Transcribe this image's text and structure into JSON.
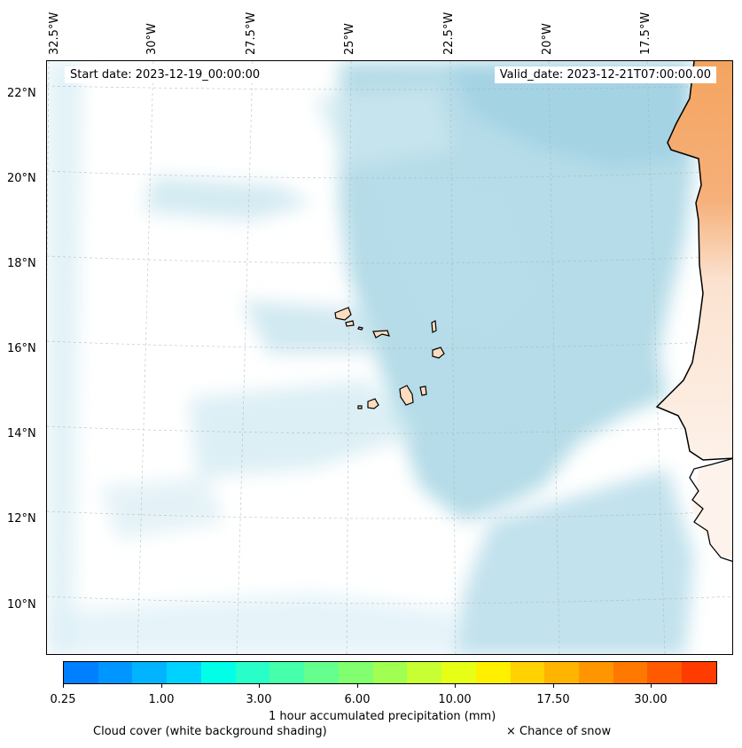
{
  "map": {
    "start_date": "Start date: 2023-12-19_00:00:00",
    "valid_date": "Valid_date: 2023-12-21T07:00:00.00",
    "lon_labels": [
      "32.5°W",
      "30°W",
      "27.5°W",
      "25°W",
      "22.5°W",
      "20°W",
      "17.5°W"
    ],
    "lat_labels": [
      "22°N",
      "20°N",
      "18°N",
      "16°N",
      "14°N",
      "12°N",
      "10°N"
    ],
    "colors": {
      "ocean_cloud": "#a9d6e5",
      "land_precip": "#f4a460",
      "islands": "#fddcbf",
      "coastline": "#000000"
    }
  },
  "colorbar": {
    "label": "1 hour accumulated precipitation (mm)",
    "tick_labels": [
      "0.25",
      "1.00",
      "3.00",
      "6.00",
      "10.00",
      "17.50",
      "30.00"
    ],
    "colors": [
      "#0080ff",
      "#0096ff",
      "#00b4ff",
      "#00d2ff",
      "#00ffe6",
      "#28ffc8",
      "#46ffaa",
      "#64ff8c",
      "#82ff6e",
      "#a0ff50",
      "#c8ff32",
      "#e6ff14",
      "#fff000",
      "#ffd200",
      "#ffb400",
      "#ff9600",
      "#ff7800",
      "#ff5a00",
      "#ff3c00"
    ]
  },
  "legend": {
    "cloud_cover": "Cloud cover (white background shading)",
    "snow": "× Chance of snow"
  }
}
